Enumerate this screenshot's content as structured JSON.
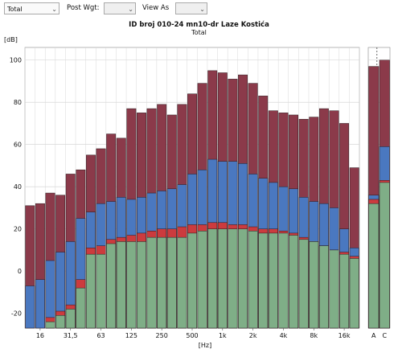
{
  "toolbar": {
    "weighting_select": "Total",
    "post_weighting_label": "Post Wgt:",
    "post_weighting_select": "",
    "view_as_label": "View As",
    "view_as_select": ""
  },
  "chart_data": {
    "type": "bar",
    "title": "ID broj 010-24 mn10-dr Laze Kostića",
    "subtitle": "Total",
    "ylabel": "[dB]",
    "xlabel": "[Hz]",
    "ylim": [
      -27,
      106
    ],
    "y_ticks": [
      -20,
      0,
      20,
      40,
      60,
      80,
      100
    ],
    "grid": true,
    "x_tick_labels": [
      "16",
      "31,5",
      "63",
      "125",
      "250",
      "500",
      "1k",
      "2k",
      "4k",
      "8k",
      "16k"
    ],
    "categories": [
      "12.5",
      "16",
      "20",
      "25",
      "31.5",
      "40",
      "50",
      "63",
      "80",
      "100",
      "125",
      "160",
      "200",
      "250",
      "315",
      "400",
      "500",
      "630",
      "800",
      "1k",
      "1.25k",
      "1.6k",
      "2k",
      "2.5k",
      "3.15k",
      "4k",
      "5k",
      "6.3k",
      "8k",
      "10k",
      "12.5k",
      "16k",
      "20k"
    ],
    "series": [
      {
        "color": "#8b3a4a",
        "values": [
          31,
          32,
          37,
          36,
          46,
          48,
          55,
          58,
          65,
          63,
          77,
          75,
          77,
          79,
          74,
          79,
          84,
          89,
          95,
          94,
          91,
          93,
          89,
          83,
          76,
          75,
          74,
          72,
          73,
          77,
          76,
          70,
          49
        ]
      },
      {
        "color": "#4a78c0",
        "values": [
          -7,
          -4,
          5,
          9,
          14,
          25,
          28,
          32,
          33,
          35,
          34,
          35,
          37,
          38,
          39,
          41,
          46,
          48,
          53,
          52,
          52,
          51,
          46,
          44,
          42,
          40,
          39,
          35,
          33,
          32,
          30,
          20,
          11
        ]
      },
      {
        "color": "#cc3b3e",
        "values": [
          -27,
          -27,
          -22,
          -19,
          -16,
          -4,
          11,
          12,
          15,
          16,
          17,
          18,
          19,
          20,
          20,
          21,
          22,
          22,
          23,
          23,
          22,
          22,
          21,
          20,
          20,
          19,
          18,
          16,
          14,
          12,
          10,
          9,
          7
        ]
      },
      {
        "color": "#7fae87",
        "values": [
          -27,
          -27,
          -24,
          -21,
          -18,
          -8,
          8,
          8,
          13,
          14,
          14,
          14,
          16,
          16,
          16,
          16,
          18,
          19,
          20,
          20,
          20,
          20,
          19,
          18,
          18,
          18,
          17,
          15,
          14,
          12,
          10,
          8,
          6
        ]
      }
    ],
    "summary_categories": [
      "A",
      "C"
    ],
    "summary_series": [
      {
        "color": "#8b3a4a",
        "values": [
          97,
          100
        ]
      },
      {
        "color": "#4a78c0",
        "values": [
          36,
          59
        ]
      },
      {
        "color": "#cc3b3e",
        "values": [
          34,
          43
        ]
      },
      {
        "color": "#7fae87",
        "values": [
          32,
          42
        ]
      }
    ],
    "summary_top_line": "A"
  }
}
